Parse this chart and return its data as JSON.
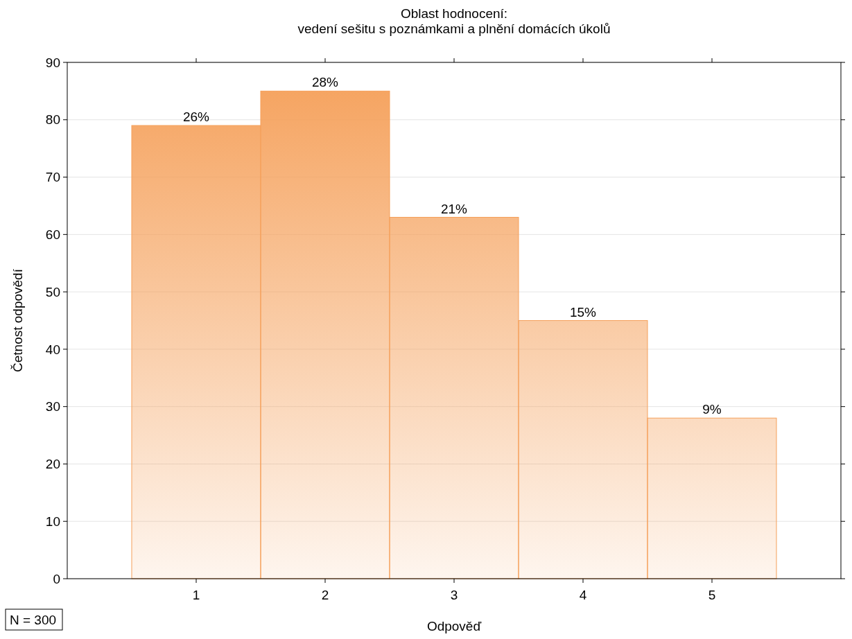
{
  "chart_data": {
    "type": "bar",
    "title": "Oblast hodnocení:\nvedení sešitu s poznámkami a plnění domácích úkolů",
    "xlabel": "Odpověď",
    "ylabel": "Četnost odpovědí",
    "categories": [
      "1",
      "2",
      "3",
      "4",
      "5"
    ],
    "values": [
      79,
      85,
      63,
      45,
      28
    ],
    "color": "#f5a05a",
    "ylim": [
      0,
      90
    ],
    "yticks": [
      0,
      10,
      20,
      30,
      40,
      50,
      60,
      70,
      80,
      90
    ],
    "grid": "y",
    "annotations": [
      {
        "text": "26%",
        "x": "1",
        "y": 79
      },
      {
        "text": "28%",
        "x": "2",
        "y": 85
      },
      {
        "text": "21%",
        "x": "3",
        "y": 63
      },
      {
        "text": "15%",
        "x": "4",
        "y": 45
      },
      {
        "text": "9%",
        "x": "5",
        "y": 28
      },
      "N = 300"
    ]
  }
}
